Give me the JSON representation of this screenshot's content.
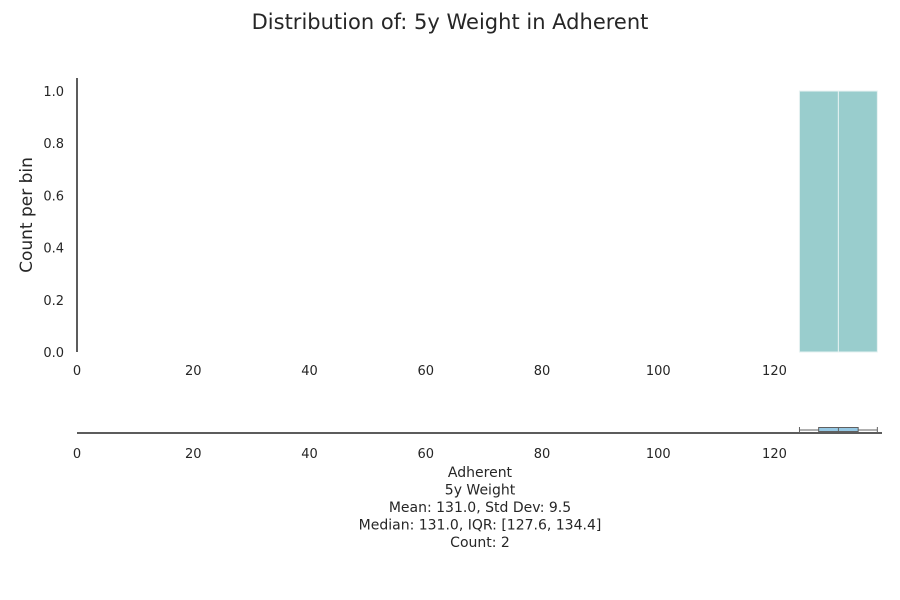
{
  "colors": {
    "bar_fill": "#99cdcd",
    "bar_edge": "#e6f2f2",
    "box_fill": "#95c8e4",
    "box_edge": "#606060",
    "axis": "#262626"
  },
  "chart_data": {
    "type": "histogram",
    "title": "Distribution of: 5y Weight in Adherent",
    "ylabel": "Count per bin",
    "xlabel": "",
    "grid": false,
    "legend": "none",
    "xlim": [
      0,
      138.5
    ],
    "ylim": [
      0,
      1.05
    ],
    "x_ticks": [
      0,
      20,
      40,
      60,
      80,
      100,
      120
    ],
    "y_ticks": [
      0.0,
      0.2,
      0.4,
      0.6,
      0.8,
      1.0
    ],
    "x_tick_labels": [
      "0",
      "20",
      "40",
      "60",
      "80",
      "100",
      "120"
    ],
    "y_tick_labels": [
      "0.0",
      "0.2",
      "0.4",
      "0.6",
      "0.8",
      "1.0"
    ],
    "bins": [
      {
        "start": 124.3,
        "end": 131.0,
        "count": 1
      },
      {
        "start": 131.0,
        "end": 137.7,
        "count": 1
      }
    ],
    "boxplot": {
      "whisker_low": 124.3,
      "q1": 127.6,
      "median": 131.0,
      "q3": 134.4,
      "whisker_high": 137.7
    },
    "stats_lines": [
      "Adherent",
      "5y Weight",
      "Mean: 131.0, Std Dev: 9.5",
      "Median: 131.0, IQR: [127.6, 134.4]",
      "Count: 2"
    ]
  }
}
